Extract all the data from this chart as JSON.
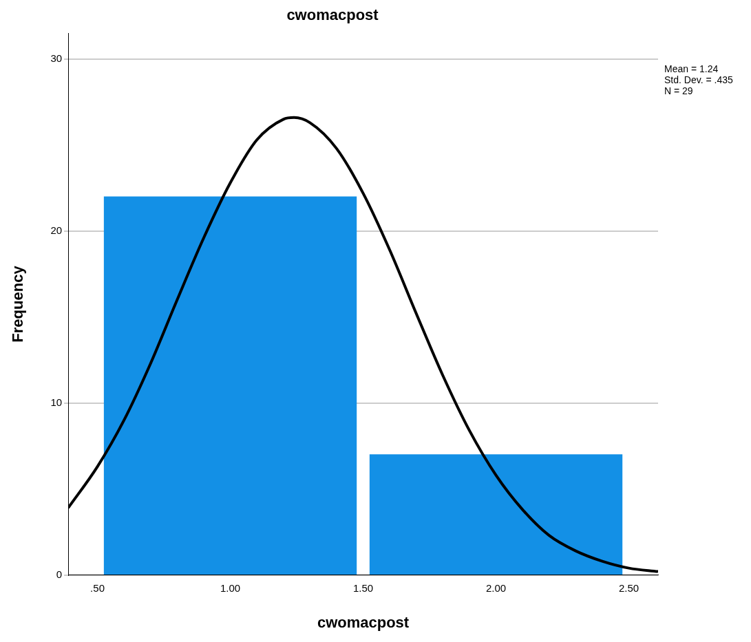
{
  "chart_data": {
    "type": "histogram",
    "title": "cwomacpost",
    "xlabel": "cwomacpost",
    "ylabel": "Frequency",
    "bins": [
      0.5,
      1.5,
      2.5
    ],
    "values": [
      22,
      7
    ],
    "color": "#1390e6",
    "xlim": [
      0.39,
      2.61
    ],
    "xticks": [
      {
        "value": 0.5,
        "label": ".50"
      },
      {
        "value": 1,
        "label": "1.00"
      },
      {
        "value": 1.5,
        "label": "1.50"
      },
      {
        "value": 2,
        "label": "2.00"
      },
      {
        "value": 2.5,
        "label": "2.50"
      }
    ],
    "ylim": [
      0,
      31.5
    ],
    "yticks": [
      0,
      10,
      20,
      30
    ],
    "grid": "y",
    "legend": false,
    "marker": "none",
    "line_style": "solid",
    "annotations": [
      "Mean = 1.24",
      "Std. Dev. = .435",
      "N = 29"
    ],
    "series": [
      {
        "type": "line",
        "color": "#000000",
        "x": [
          0.39,
          0.5,
          0.6,
          0.7,
          0.8,
          0.9,
          1.0,
          1.1,
          1.2,
          1.24,
          1.3,
          1.4,
          1.5,
          1.6,
          1.7,
          1.8,
          1.9,
          2.0,
          2.1,
          2.2,
          2.3,
          2.4,
          2.5,
          2.61
        ],
        "values": [
          3.9,
          6.3,
          9.0,
          12.3,
          16.0,
          19.6,
          22.8,
          25.3,
          26.5,
          26.6,
          26.3,
          24.8,
          22.2,
          18.9,
          15.2,
          11.6,
          8.4,
          5.8,
          3.8,
          2.3,
          1.4,
          0.8,
          0.4,
          0.2
        ]
      }
    ]
  }
}
